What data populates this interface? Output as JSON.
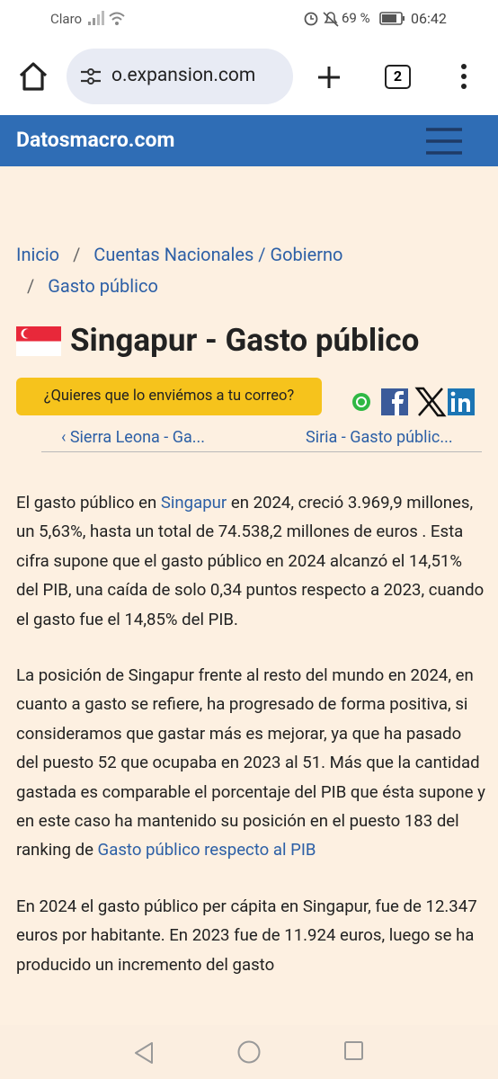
{
  "status_bar": {
    "carrier": "Claro",
    "battery": "69 %",
    "time": "06:42"
  },
  "browser": {
    "url": "o.expansion.com",
    "tab_count": "2"
  },
  "site": {
    "brand": "Datosmacro.com"
  },
  "breadcrumb": {
    "separator": "/",
    "items": [
      "Inicio",
      "Cuentas Nacionales / Gobierno",
      "Gasto público"
    ]
  },
  "title": "Singapur - Gasto público",
  "subscribe_button": "¿Quieres que lo enviémos a tu correo?",
  "pager": {
    "previous": "‹ Sierra Leona - Ga...",
    "next": "Siria - Gasto públic..."
  },
  "paragraphs": [
    [
      {
        "text": "El gasto público en "
      },
      {
        "link": "Singapur"
      },
      {
        "text": " en 2024, creció 3.969,9 millones, un 5,63%, hasta un total de 74.538,2 millones de euros . Esta cifra supone que el gasto público en 2024 alcanzó el 14,51% del PIB, una caída de solo 0,34 puntos respecto a 2023, cuando el gasto fue el 14,85% del PIB."
      }
    ],
    [
      {
        "text": "La posición de Singapur frente al resto del mundo en 2024, en cuanto a gasto se refiere, ha progresado de forma positiva, si consideramos que gastar más es mejorar, ya que ha pasado del puesto 52 que ocupaba en 2023 al 51. Más que la cantidad gastada es comparable el porcentaje del PIB que ésta supone y en este caso ha mantenido su posición en el puesto 183 del ranking de "
      },
      {
        "link": "Gasto público respecto al PIB"
      }
    ],
    [
      {
        "text": "En 2024 el gasto público per cápita en Singapur, fue de 12.347 euros por habitante. En 2023 fue de 11.924 euros, luego se ha producido un incremento del gasto"
      }
    ]
  ]
}
